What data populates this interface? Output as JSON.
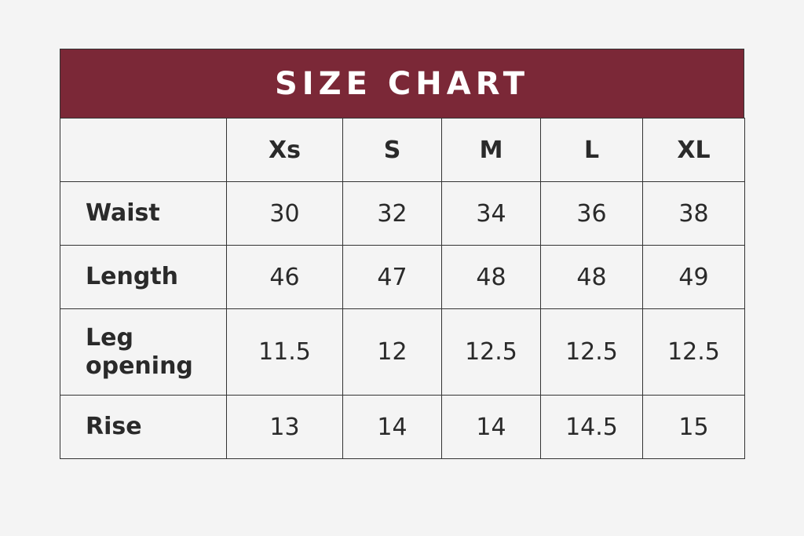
{
  "title": "SIZE CHART",
  "table": {
    "columns": [
      "Xs",
      "S",
      "M",
      "L",
      "XL"
    ],
    "rows": [
      {
        "label": "Waist",
        "values": [
          "30",
          "32",
          "34",
          "36",
          "38"
        ]
      },
      {
        "label": "Length",
        "values": [
          "46",
          "47",
          "48",
          "48",
          "49"
        ]
      },
      {
        "label": "Leg opening",
        "values": [
          "11.5",
          "12",
          "12.5",
          "12.5",
          "12.5"
        ]
      },
      {
        "label": "Rise",
        "values": [
          "13",
          "14",
          "14",
          "14.5",
          "15"
        ]
      }
    ]
  }
}
